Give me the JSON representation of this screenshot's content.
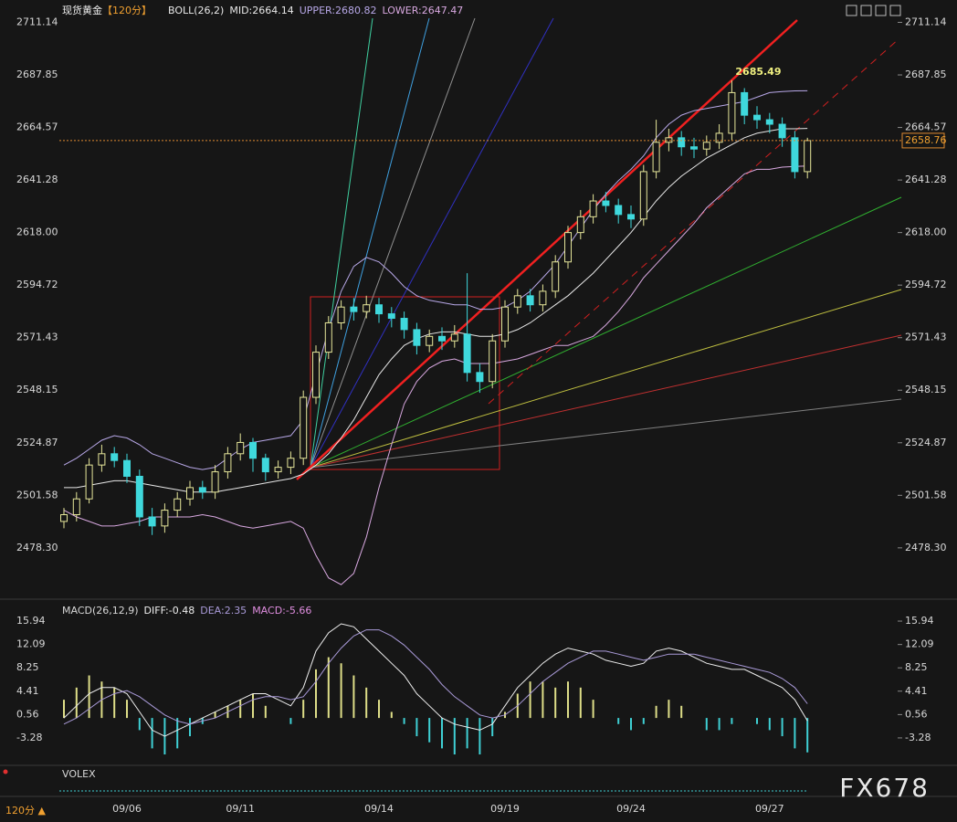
{
  "chart_data": [
    {
      "type": "candlestick",
      "title": "现货黄金",
      "period": "【120分】",
      "indicator": "BOLL(26,2)",
      "categories": [
        null,
        null,
        null,
        null,
        null,
        "09/06",
        null,
        null,
        null,
        null,
        null,
        null,
        null,
        null,
        "09/11",
        null,
        null,
        null,
        null,
        null,
        null,
        null,
        null,
        null,
        null,
        "09/14",
        null,
        null,
        null,
        null,
        null,
        null,
        null,
        null,
        null,
        "09/19",
        null,
        null,
        null,
        null,
        null,
        null,
        null,
        null,
        null,
        "09/24",
        null,
        null,
        null,
        null,
        null,
        null,
        null,
        null,
        null,
        null,
        "09/27",
        null,
        null,
        null
      ],
      "open": [
        2490,
        2493,
        2500,
        2515,
        2520,
        2517,
        2510,
        2492,
        2488,
        2495,
        2500,
        2505,
        2503,
        2512,
        2520,
        2525,
        2518,
        2512,
        2514,
        2518,
        2545,
        2565,
        2578,
        2585,
        2583,
        2586,
        2582,
        2580,
        2575,
        2568,
        2572,
        2570,
        2573,
        2556,
        2552,
        2570,
        2585,
        2590,
        2586,
        2592,
        2605,
        2618,
        2625,
        2632,
        2630,
        2626,
        2624,
        2645,
        2658,
        2660,
        2656,
        2655,
        2658,
        2662,
        2680,
        2670,
        2668,
        2666,
        2660,
        2645
      ],
      "high": [
        2496,
        2503,
        2518,
        2524,
        2523,
        2520,
        2513,
        2496,
        2498,
        2503,
        2508,
        2508,
        2515,
        2523,
        2529,
        2527,
        2520,
        2517,
        2521,
        2548,
        2568,
        2581,
        2588,
        2589,
        2590,
        2589,
        2585,
        2583,
        2578,
        2575,
        2576,
        2577,
        2600,
        2560,
        2573,
        2588,
        2593,
        2593,
        2595,
        2608,
        2621,
        2628,
        2635,
        2636,
        2633,
        2630,
        2648,
        2668,
        2664,
        2663,
        2660,
        2661,
        2666,
        2685.49,
        2682,
        2674,
        2671,
        2669,
        2663,
        2660
      ],
      "low": [
        2487,
        2490,
        2498,
        2512,
        2514,
        2507,
        2488,
        2484,
        2485,
        2492,
        2497,
        2500,
        2500,
        2509,
        2517,
        2512,
        2508,
        2509,
        2511,
        2515,
        2542,
        2562,
        2575,
        2579,
        2580,
        2578,
        2576,
        2571,
        2564,
        2565,
        2566,
        2567,
        2552,
        2547,
        2549,
        2567,
        2582,
        2583,
        2583,
        2589,
        2602,
        2615,
        2622,
        2627,
        2622,
        2620,
        2621,
        2642,
        2654,
        2652,
        2651,
        2652,
        2655,
        2659,
        2666,
        2664,
        2662,
        2656,
        2642,
        2642
      ],
      "close": [
        2493,
        2500,
        2515,
        2520,
        2517,
        2510,
        2492,
        2488,
        2495,
        2500,
        2505,
        2503,
        2512,
        2520,
        2525,
        2518,
        2512,
        2514,
        2518,
        2545,
        2565,
        2578,
        2585,
        2583,
        2586,
        2582,
        2580,
        2575,
        2568,
        2572,
        2570,
        2573,
        2556,
        2552,
        2570,
        2585,
        2590,
        2586,
        2592,
        2605,
        2618,
        2625,
        2632,
        2630,
        2626,
        2624,
        2645,
        2658,
        2660,
        2656,
        2655,
        2658,
        2662,
        2680,
        2670,
        2668,
        2666,
        2660,
        2645,
        2658.76
      ],
      "up_color": "#e6e69a",
      "down_color": "#3fd8dc",
      "series": [
        {
          "name": "MID:2664.14",
          "color": "#e8e8e8",
          "values": [
            2505,
            2505,
            2506,
            2507,
            2508,
            2508,
            2507,
            2506,
            2505,
            2504,
            2503,
            2503,
            2503,
            2504,
            2505,
            2506,
            2507,
            2508,
            2509,
            2511,
            2515,
            2520,
            2527,
            2535,
            2545,
            2555,
            2562,
            2568,
            2571,
            2573,
            2574,
            2574,
            2573,
            2572,
            2572,
            2573,
            2575,
            2578,
            2582,
            2586,
            2590,
            2595,
            2600,
            2606,
            2612,
            2618,
            2625,
            2632,
            2638,
            2643,
            2647,
            2651,
            2654,
            2657,
            2660,
            2662,
            2663,
            2664,
            2664,
            2664.14
          ]
        },
        {
          "name": "UPPER:2680.82",
          "color": "#b8a8e8",
          "values": [
            2515,
            2518,
            2522,
            2526,
            2528,
            2527,
            2524,
            2520,
            2518,
            2516,
            2514,
            2513,
            2514,
            2518,
            2522,
            2525,
            2526,
            2527,
            2528,
            2535,
            2555,
            2575,
            2592,
            2603,
            2607,
            2605,
            2600,
            2594,
            2590,
            2588,
            2587,
            2586,
            2586,
            2584,
            2584,
            2585,
            2588,
            2592,
            2598,
            2604,
            2612,
            2620,
            2628,
            2635,
            2641,
            2646,
            2652,
            2660,
            2666,
            2670,
            2672,
            2673,
            2674,
            2675,
            2676,
            2678,
            2680,
            2680.5,
            2680.8,
            2680.82
          ]
        },
        {
          "name": "LOWER:2647.47",
          "color": "#d8a8e0",
          "values": [
            2495,
            2492,
            2490,
            2488,
            2488,
            2489,
            2490,
            2492,
            2492,
            2492,
            2492,
            2493,
            2492,
            2490,
            2488,
            2487,
            2488,
            2489,
            2490,
            2487,
            2475,
            2465,
            2462,
            2467,
            2483,
            2505,
            2524,
            2542,
            2552,
            2558,
            2561,
            2562,
            2560,
            2560,
            2560,
            2561,
            2562,
            2564,
            2566,
            2568,
            2568,
            2570,
            2572,
            2577,
            2583,
            2590,
            2598,
            2604,
            2610,
            2616,
            2622,
            2629,
            2634,
            2639,
            2644,
            2646,
            2646,
            2647,
            2647.3,
            2647.47
          ]
        }
      ],
      "ylim": [
        2458,
        2717
      ],
      "yticks": [
        {
          "value": 2478.3,
          "label": "2478.30"
        },
        2501.58,
        2524.87,
        2548.15,
        2571.43,
        2594.72,
        {
          "value": 2618,
          "label": "2618.00"
        },
        2641.28,
        2664.57,
        2687.85,
        2711.14
      ]
    },
    {
      "type": "macd",
      "title": "MACD(26,12,9)",
      "series": [
        {
          "name": "DIFF:-0.48",
          "color": "#eeeeee",
          "values": [
            0,
            2,
            4,
            5,
            5,
            4,
            1,
            -2,
            -3,
            -2,
            -1,
            0,
            1,
            2,
            3,
            4,
            4,
            3,
            2,
            5,
            11,
            14,
            15.5,
            15,
            13,
            11,
            9,
            7,
            4,
            2,
            0,
            -1,
            -1.5,
            -2,
            -1,
            2,
            5,
            7,
            9,
            10.5,
            11.5,
            11,
            10.5,
            9.5,
            9,
            8.5,
            9,
            11,
            11.5,
            11,
            10,
            9,
            8.5,
            8,
            8,
            7,
            6,
            5,
            3,
            -0.48
          ]
        },
        {
          "name": "DEA:2.35",
          "color": "#a99ad8",
          "values": [
            -1,
            0,
            1.5,
            3,
            4,
            4.5,
            3.5,
            2,
            0.5,
            -0.5,
            -1,
            -0.5,
            0,
            1,
            2,
            3,
            3.5,
            3.5,
            3,
            3.5,
            6,
            9,
            11.5,
            13.5,
            14.5,
            14.5,
            13.5,
            12,
            10,
            8,
            5.5,
            3.5,
            2,
            0.5,
            0,
            0.5,
            2,
            4,
            6,
            7.5,
            9,
            10,
            11,
            11,
            10.5,
            10,
            9.5,
            10,
            10.5,
            10.5,
            10.5,
            10,
            9.5,
            9,
            8.5,
            8,
            7.5,
            6.5,
            5,
            2.35
          ]
        },
        {
          "name": "MACD:-5.66",
          "color": "#e08ee0",
          "up_color": "#dede88",
          "down_color": "#3fd0d4",
          "values": [
            3,
            5,
            7,
            6,
            5,
            3,
            -2,
            -5,
            -6,
            -5,
            -3,
            -1,
            1,
            2,
            3,
            4,
            2,
            0,
            -1,
            3,
            8,
            10,
            9,
            7,
            5,
            3,
            1,
            -1,
            -3,
            -4,
            -5,
            -6,
            -5,
            -6,
            -3,
            1,
            4,
            6,
            6,
            5,
            6,
            5,
            3,
            0,
            -1,
            -2,
            -1,
            2,
            3,
            2,
            0,
            -2,
            -2,
            -1,
            0,
            -1,
            -2,
            -3,
            -5,
            -5.66
          ]
        }
      ],
      "ylim": [
        -8.1,
        18.2
      ],
      "yticks": [
        -3.28,
        0.56,
        4.41,
        8.25,
        12.09,
        15.94
      ]
    }
  ],
  "footer": {
    "volume": "VOLEX",
    "period": "120分 ▲",
    "watermark": "FX678"
  }
}
